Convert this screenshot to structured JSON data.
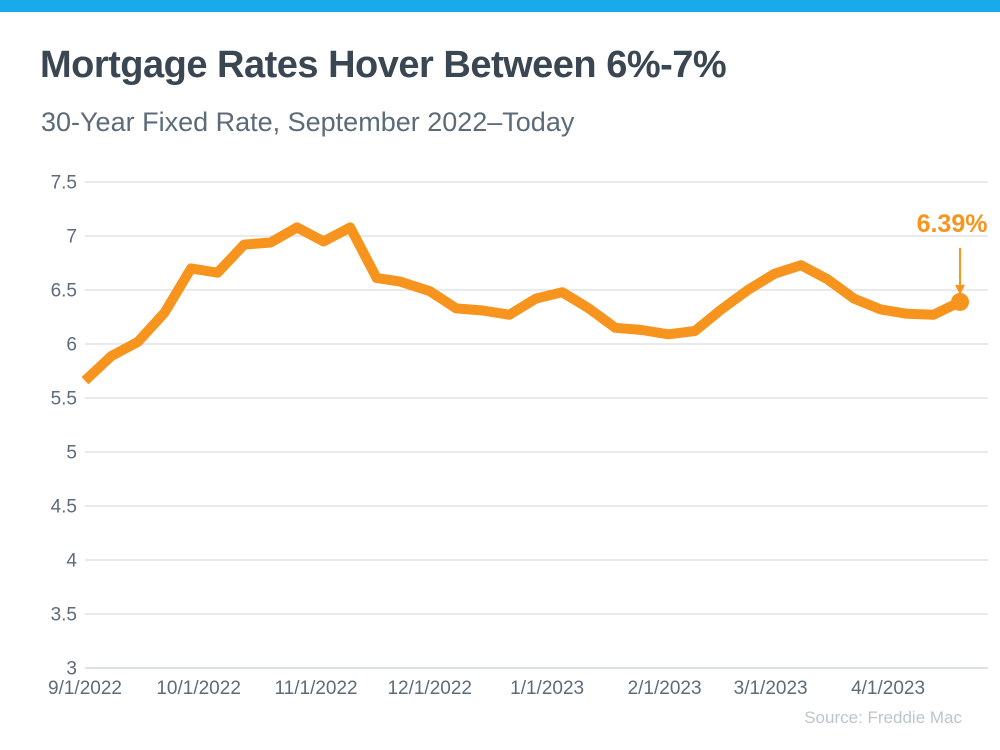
{
  "page": {
    "accent_bar_color": "#18ABEB"
  },
  "chart_data": {
    "type": "line",
    "title": "Mortgage Rates Hover Between 6%-7%",
    "subtitle": "30-Year Fixed Rate, September 2022–Today",
    "source": "Source: Freddie Mac",
    "xlabel": "",
    "ylabel": "",
    "ylim": [
      3,
      7.5
    ],
    "y_ticks": [
      "7.5",
      "7",
      "6.5",
      "6",
      "5.5",
      "5",
      "4.5",
      "4",
      "3.5",
      "3"
    ],
    "x_ticks": [
      "9/1/2022",
      "10/1/2022",
      "11/1/2022",
      "12/1/2022",
      "1/1/2023",
      "2/1/2023",
      "3/1/2023",
      "4/1/2023"
    ],
    "grid": true,
    "legend": "none",
    "line_color": "#F7941E",
    "grid_color": "#DADDE1",
    "axis_line_color": "#C7D0D8",
    "annotation": {
      "label": "6.39%",
      "color": "#F7941E"
    },
    "series": [
      {
        "name": "30-Year Fixed Rate",
        "x": [
          "9/1/2022",
          "9/8/2022",
          "9/15/2022",
          "9/22/2022",
          "9/29/2022",
          "10/6/2022",
          "10/13/2022",
          "10/20/2022",
          "10/27/2022",
          "11/3/2022",
          "11/10/2022",
          "11/17/2022",
          "11/23/2022",
          "12/1/2022",
          "12/8/2022",
          "12/15/2022",
          "12/22/2022",
          "12/29/2022",
          "1/5/2023",
          "1/12/2023",
          "1/19/2023",
          "1/26/2023",
          "2/2/2023",
          "2/9/2023",
          "2/16/2023",
          "2/23/2023",
          "3/2/2023",
          "3/9/2023",
          "3/16/2023",
          "3/23/2023",
          "3/30/2023",
          "4/6/2023",
          "4/13/2023",
          "4/20/2023"
        ],
        "values": [
          5.66,
          5.89,
          6.02,
          6.29,
          6.7,
          6.66,
          6.92,
          6.94,
          7.08,
          6.95,
          7.08,
          6.61,
          6.58,
          6.49,
          6.33,
          6.31,
          6.27,
          6.42,
          6.48,
          6.33,
          6.15,
          6.13,
          6.09,
          6.12,
          6.32,
          6.5,
          6.65,
          6.73,
          6.6,
          6.42,
          6.32,
          6.28,
          6.27,
          6.39
        ]
      }
    ]
  }
}
